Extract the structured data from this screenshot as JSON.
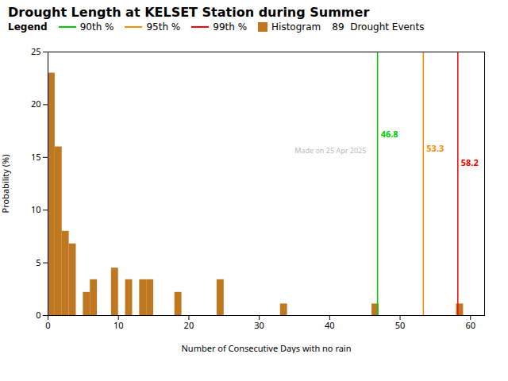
{
  "chart_data": {
    "type": "histogram",
    "title": "Drought Length at KELSET Station during Summer",
    "x_label": "Number of Consecutive Days with no rain",
    "y_label": "Probability (%)",
    "xlim": [
      0,
      62
    ],
    "ylim": [
      0,
      25
    ],
    "xticks": [
      0,
      10,
      20,
      30,
      40,
      50,
      60
    ],
    "yticks": [
      0,
      5,
      10,
      15,
      20,
      25
    ],
    "grid": false,
    "bins": [
      0,
      1,
      2,
      3,
      4,
      5,
      6,
      7,
      8,
      9,
      10,
      11,
      12,
      13,
      14,
      15,
      16,
      17,
      18,
      19,
      20,
      21,
      22,
      23,
      24,
      25,
      26,
      27,
      28,
      29,
      30,
      31,
      32,
      33,
      34,
      35,
      36,
      37,
      38,
      39,
      40,
      41,
      42,
      43,
      44,
      45,
      46,
      47,
      48,
      49,
      50,
      51,
      52,
      53,
      54,
      55,
      56,
      57,
      58,
      59,
      60
    ],
    "series": [
      {
        "name": "Histogram",
        "color": "#C07820",
        "values": [
          23.0,
          16.0,
          8.0,
          6.8,
          0.0,
          2.2,
          3.4,
          0.0,
          0.0,
          4.5,
          0.0,
          3.4,
          0.0,
          3.4,
          3.4,
          0.0,
          0.0,
          0.0,
          2.2,
          0.0,
          0.0,
          0.0,
          0.0,
          0.0,
          3.4,
          0.0,
          0.0,
          0.0,
          0.0,
          0.0,
          0.0,
          0.0,
          0.0,
          1.1,
          0.0,
          0.0,
          0.0,
          0.0,
          0.0,
          0.0,
          0.0,
          0.0,
          0.0,
          0.0,
          0.0,
          0.0,
          1.1,
          0.0,
          0.0,
          0.0,
          0.0,
          0.0,
          0.0,
          0.0,
          0.0,
          0.0,
          0.0,
          0.0,
          1.1,
          0.0
        ]
      }
    ],
    "vlines": [
      {
        "name": "90th %",
        "value": 46.8,
        "color": "#00CC00"
      },
      {
        "name": "95th %",
        "value": 53.3,
        "color": "#FF8C00"
      },
      {
        "name": "99th %",
        "value": 58.2,
        "color": "#FF0000"
      }
    ],
    "legend": "top",
    "legend_title": "Legend",
    "legend_notes": [
      "89  Drought Events"
    ],
    "annotations": [
      {
        "text": "Made on 25 Apr 2025",
        "color": "#BBBBBB"
      }
    ]
  }
}
